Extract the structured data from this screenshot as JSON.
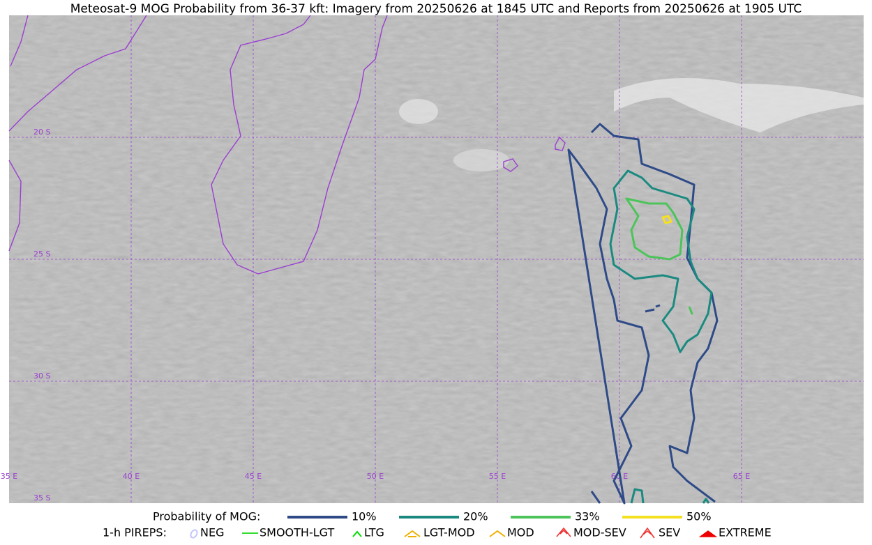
{
  "title": "Meteosat-9 MOG Probability from 36-37 kft: Imagery from 20250626 at 1845 UTC and Reports from 20250626 at 1905 UTC",
  "latitude_labels": [
    "20 S",
    "25 S",
    "30 S",
    "35 S"
  ],
  "longitude_labels": [
    "35 E",
    "40 E",
    "45 E",
    "50 E",
    "55 E",
    "60 E",
    "65 E"
  ],
  "legend": {
    "probability": {
      "label": "Probability of MOG:",
      "items": [
        {
          "label": "10%",
          "color": "#2e4a87"
        },
        {
          "label": "20%",
          "color": "#1a8a80"
        },
        {
          "label": "33%",
          "color": "#4cc45a"
        },
        {
          "label": "50%",
          "color": "#f5e020"
        }
      ]
    },
    "pireps": {
      "label": "1-h PIREPS:",
      "items": [
        {
          "label": "NEG",
          "color": "#c4c4ff"
        },
        {
          "label": "SMOOTH-LGT",
          "color": "#33dd33"
        },
        {
          "label": "LTG",
          "color": "#00dd00"
        },
        {
          "label": "LGT-MOD",
          "color": "#f0b000"
        },
        {
          "label": "MOD",
          "color": "#f0b000"
        },
        {
          "label": "MOD-SEV",
          "color": "#ee3333"
        },
        {
          "label": "SEV",
          "color": "#ee3333"
        },
        {
          "label": "EXTREME",
          "color": "#ee0000"
        }
      ]
    }
  }
}
